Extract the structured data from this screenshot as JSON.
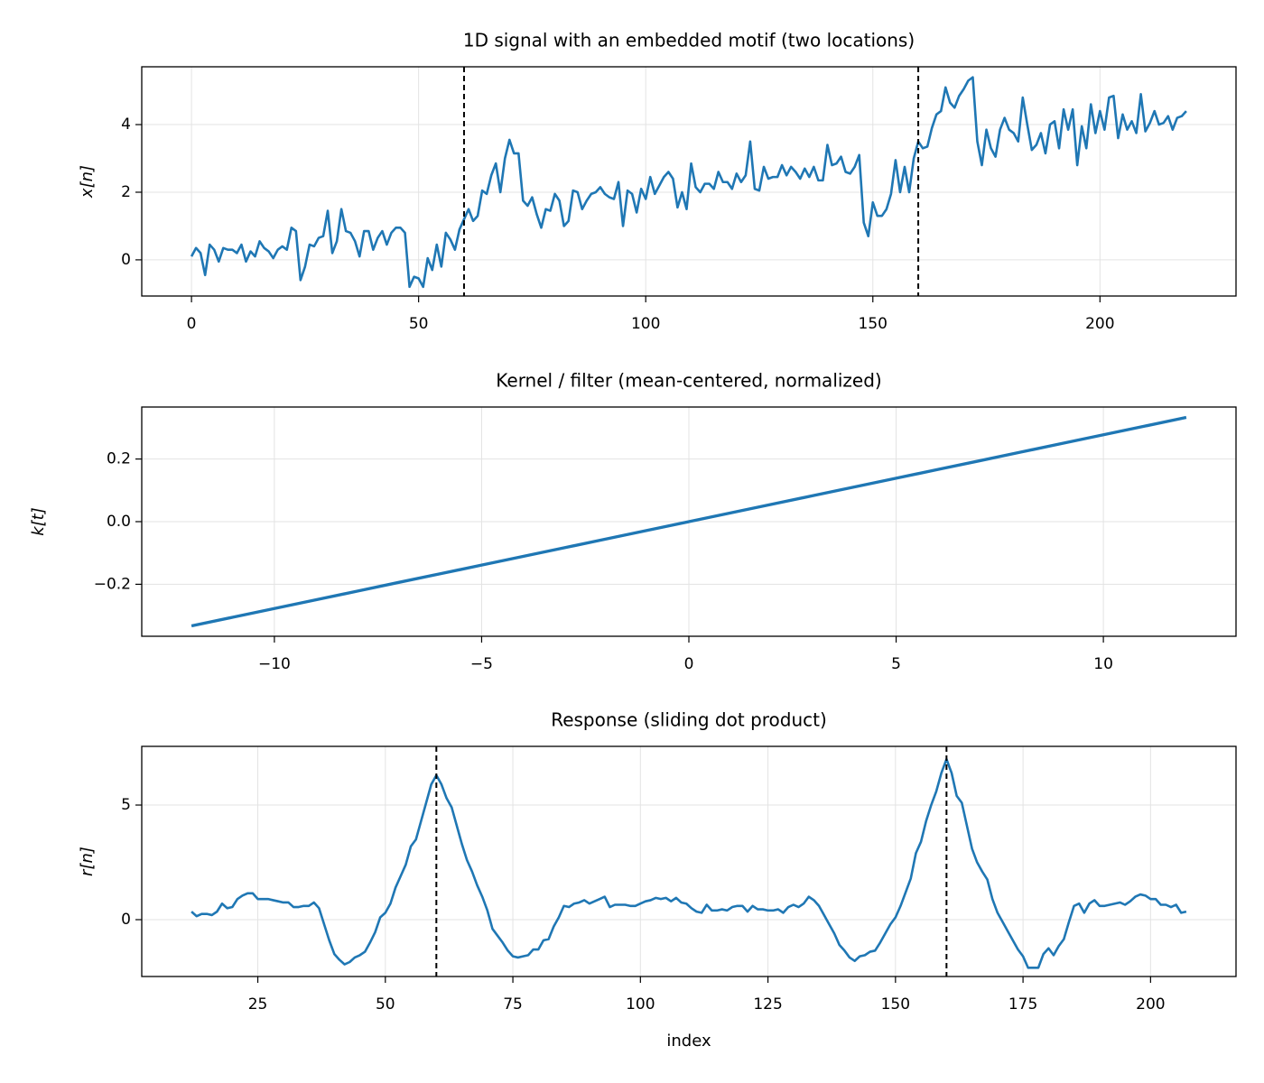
{
  "chart_data": [
    {
      "type": "line",
      "title": "1D signal with an embedded motif (two locations)",
      "y_label": "x[n]",
      "color": "#1f77b4",
      "grid": true,
      "xlim": [
        -10.95,
        229.95
      ],
      "ylim": [
        -1.07,
        5.71
      ],
      "xticks": [
        0,
        50,
        100,
        150,
        200
      ],
      "yticks": [
        0,
        2,
        4
      ],
      "vlines": [
        60,
        160
      ],
      "x": [
        0,
        1,
        2,
        3,
        4,
        5,
        6,
        7,
        8,
        9,
        10,
        11,
        12,
        13,
        14,
        15,
        16,
        17,
        18,
        19,
        20,
        21,
        22,
        23,
        24,
        25,
        26,
        27,
        28,
        29,
        30,
        31,
        32,
        33,
        34,
        35,
        36,
        37,
        38,
        39,
        40,
        41,
        42,
        43,
        44,
        45,
        46,
        47,
        48,
        49,
        50,
        51,
        52,
        53,
        54,
        55,
        56,
        57,
        58,
        59,
        60,
        61,
        62,
        63,
        64,
        65,
        66,
        67,
        68,
        69,
        70,
        71,
        72,
        73,
        74,
        75,
        76,
        77,
        78,
        79,
        80,
        81,
        82,
        83,
        84,
        85,
        86,
        87,
        88,
        89,
        90,
        91,
        92,
        93,
        94,
        95,
        96,
        97,
        98,
        99,
        100,
        101,
        102,
        103,
        104,
        105,
        106,
        107,
        108,
        109,
        110,
        111,
        112,
        113,
        114,
        115,
        116,
        117,
        118,
        119,
        120,
        121,
        122,
        123,
        124,
        125,
        126,
        127,
        128,
        129,
        130,
        131,
        132,
        133,
        134,
        135,
        136,
        137,
        138,
        139,
        140,
        141,
        142,
        143,
        144,
        145,
        146,
        147,
        148,
        149,
        150,
        151,
        152,
        153,
        154,
        155,
        156,
        157,
        158,
        159,
        160,
        161,
        162,
        163,
        164,
        165,
        166,
        167,
        168,
        169,
        170,
        171,
        172,
        173,
        174,
        175,
        176,
        177,
        178,
        179,
        180,
        181,
        182,
        183,
        184,
        185,
        186,
        187,
        188,
        189,
        190,
        191,
        192,
        193,
        194,
        195,
        196,
        197,
        198,
        199,
        200,
        201,
        202,
        203,
        204,
        205,
        206,
        207,
        208,
        209,
        210,
        211,
        212,
        213,
        214,
        215,
        216,
        217,
        218,
        219
      ],
      "values": [
        0.1,
        0.35,
        0.2,
        -0.45,
        0.45,
        0.3,
        -0.05,
        0.35,
        0.3,
        0.3,
        0.2,
        0.45,
        -0.05,
        0.25,
        0.1,
        0.55,
        0.35,
        0.25,
        0.05,
        0.3,
        0.4,
        0.3,
        0.95,
        0.85,
        -0.6,
        -0.2,
        0.45,
        0.4,
        0.65,
        0.7,
        1.45,
        0.2,
        0.55,
        1.5,
        0.85,
        0.8,
        0.55,
        0.1,
        0.85,
        0.85,
        0.3,
        0.65,
        0.85,
        0.45,
        0.8,
        0.95,
        0.95,
        0.8,
        -0.8,
        -0.5,
        -0.55,
        -0.8,
        0.05,
        -0.3,
        0.45,
        -0.2,
        0.8,
        0.6,
        0.3,
        0.9,
        1.2,
        1.5,
        1.15,
        1.3,
        2.05,
        1.95,
        2.5,
        2.85,
        2.0,
        3.0,
        3.55,
        3.15,
        3.15,
        1.75,
        1.6,
        1.85,
        1.35,
        0.95,
        1.5,
        1.45,
        1.95,
        1.75,
        1.0,
        1.15,
        2.05,
        2.0,
        1.5,
        1.75,
        1.95,
        2.0,
        2.15,
        1.95,
        1.85,
        1.8,
        2.3,
        1.0,
        2.05,
        1.95,
        1.4,
        2.1,
        1.8,
        2.45,
        1.95,
        2.2,
        2.45,
        2.6,
        2.4,
        1.55,
        2.0,
        1.5,
        2.85,
        2.15,
        2.0,
        2.25,
        2.25,
        2.1,
        2.6,
        2.3,
        2.3,
        2.1,
        2.55,
        2.3,
        2.5,
        3.5,
        2.1,
        2.05,
        2.75,
        2.4,
        2.45,
        2.45,
        2.8,
        2.5,
        2.75,
        2.6,
        2.4,
        2.7,
        2.45,
        2.75,
        2.35,
        2.35,
        3.4,
        2.8,
        2.85,
        3.05,
        2.6,
        2.55,
        2.75,
        3.1,
        1.1,
        0.7,
        1.7,
        1.3,
        1.3,
        1.5,
        1.95,
        2.95,
        2.0,
        2.75,
        2.0,
        3.0,
        3.5,
        3.3,
        3.35,
        3.9,
        4.3,
        4.4,
        5.1,
        4.65,
        4.5,
        4.85,
        5.05,
        5.3,
        5.4,
        3.5,
        2.8,
        3.85,
        3.3,
        3.05,
        3.85,
        4.2,
        3.85,
        3.75,
        3.5,
        4.8,
        4.0,
        3.25,
        3.4,
        3.75,
        3.15,
        4.0,
        4.1,
        3.3,
        4.45,
        3.85,
        4.45,
        2.8,
        3.95,
        3.3,
        4.6,
        3.75,
        4.4,
        3.85,
        4.8,
        4.85,
        3.6,
        4.3,
        3.85,
        4.1,
        3.75,
        4.9,
        3.8,
        4.05,
        4.4,
        4.0,
        4.05,
        4.25,
        3.85,
        4.2,
        4.25,
        4.4
      ]
    },
    {
      "type": "line",
      "title": "Kernel / filter (mean-centered, normalized)",
      "y_label": "k[t]",
      "color": "#1f77b4",
      "grid": true,
      "xlim": [
        -13.2,
        13.2
      ],
      "ylim": [
        -0.366,
        0.366
      ],
      "xticks": [
        {
          "value": -10,
          "label": "−10"
        },
        {
          "value": -5,
          "label": "−5"
        },
        0,
        5,
        10
      ],
      "yticks": [
        {
          "value": -0.2,
          "label": "−0.2"
        },
        {
          "value": 0,
          "label": "0.0"
        },
        0.2
      ],
      "x": [
        -12,
        -11,
        -10,
        -9,
        -8,
        -7,
        -6,
        -5,
        -4,
        -3,
        -2,
        -1,
        0,
        1,
        2,
        3,
        4,
        5,
        6,
        7,
        8,
        9,
        10,
        11,
        12
      ],
      "values": [
        -0.3328,
        -0.3051,
        -0.2774,
        -0.2496,
        -0.2219,
        -0.1941,
        -0.1664,
        -0.1387,
        -0.1109,
        -0.0832,
        -0.0555,
        -0.0277,
        0,
        0.0277,
        0.0555,
        0.0832,
        0.1109,
        0.1387,
        0.1664,
        0.1941,
        0.2219,
        0.2496,
        0.2774,
        0.3051,
        0.3328
      ]
    },
    {
      "type": "line",
      "title": "Response (sliding dot product)",
      "y_label": "r[n]",
      "x_label": "index",
      "color": "#1f77b4",
      "grid": true,
      "xlim": [
        2.25,
        216.75
      ],
      "ylim": [
        -2.48,
        7.56
      ],
      "xticks": [
        25,
        50,
        75,
        100,
        125,
        150,
        175,
        200
      ],
      "yticks": [
        0,
        5
      ],
      "vlines": [
        60,
        160
      ],
      "x": [
        12,
        13,
        14,
        15,
        16,
        17,
        18,
        19,
        20,
        21,
        22,
        23,
        24,
        25,
        26,
        27,
        28,
        29,
        30,
        31,
        32,
        33,
        34,
        35,
        36,
        37,
        38,
        39,
        40,
        41,
        42,
        43,
        44,
        45,
        46,
        47,
        48,
        49,
        50,
        51,
        52,
        53,
        54,
        55,
        56,
        57,
        58,
        59,
        60,
        61,
        62,
        63,
        64,
        65,
        66,
        67,
        68,
        69,
        70,
        71,
        72,
        73,
        74,
        75,
        76,
        77,
        78,
        79,
        80,
        81,
        82,
        83,
        84,
        85,
        86,
        87,
        88,
        89,
        90,
        91,
        92,
        93,
        94,
        95,
        96,
        97,
        98,
        99,
        100,
        101,
        102,
        103,
        104,
        105,
        106,
        107,
        108,
        109,
        110,
        111,
        112,
        113,
        114,
        115,
        116,
        117,
        118,
        119,
        120,
        121,
        122,
        123,
        124,
        125,
        126,
        127,
        128,
        129,
        130,
        131,
        132,
        133,
        134,
        135,
        136,
        137,
        138,
        139,
        140,
        141,
        142,
        143,
        144,
        145,
        146,
        147,
        148,
        149,
        150,
        151,
        152,
        153,
        154,
        155,
        156,
        157,
        158,
        159,
        160,
        161,
        162,
        163,
        164,
        165,
        166,
        167,
        168,
        169,
        170,
        171,
        172,
        173,
        174,
        175,
        176,
        177,
        178,
        179,
        180,
        181,
        182,
        183,
        184,
        185,
        186,
        187,
        188,
        189,
        190,
        191,
        192,
        193,
        194,
        195,
        196,
        197,
        198,
        199,
        200,
        201,
        202,
        203,
        204,
        205,
        206,
        207
      ],
      "values": [
        0.35,
        0.15,
        0.25,
        0.25,
        0.2,
        0.35,
        0.7,
        0.5,
        0.55,
        0.9,
        1.05,
        1.15,
        1.15,
        0.9,
        0.9,
        0.9,
        0.85,
        0.8,
        0.75,
        0.75,
        0.55,
        0.55,
        0.6,
        0.6,
        0.75,
        0.5,
        -0.2,
        -0.9,
        -1.5,
        -1.75,
        -1.95,
        -1.85,
        -1.65,
        -1.55,
        -1.4,
        -1.0,
        -0.55,
        0.1,
        0.3,
        0.7,
        1.4,
        1.9,
        2.4,
        3.2,
        3.5,
        4.3,
        5.1,
        5.9,
        6.3,
        5.9,
        5.3,
        4.9,
        4.1,
        3.3,
        2.6,
        2.1,
        1.5,
        1.0,
        0.4,
        -0.4,
        -0.7,
        -1.0,
        -1.35,
        -1.6,
        -1.65,
        -1.6,
        -1.55,
        -1.3,
        -1.3,
        -0.9,
        -0.85,
        -0.3,
        0.1,
        0.6,
        0.55,
        0.7,
        0.75,
        0.85,
        0.7,
        0.8,
        0.9,
        1.0,
        0.55,
        0.65,
        0.65,
        0.65,
        0.6,
        0.6,
        0.7,
        0.8,
        0.85,
        0.95,
        0.9,
        0.95,
        0.8,
        0.95,
        0.75,
        0.7,
        0.5,
        0.35,
        0.3,
        0.65,
        0.4,
        0.4,
        0.45,
        0.4,
        0.55,
        0.6,
        0.6,
        0.35,
        0.6,
        0.45,
        0.45,
        0.4,
        0.4,
        0.45,
        0.3,
        0.55,
        0.65,
        0.55,
        0.7,
        1.0,
        0.85,
        0.6,
        0.2,
        -0.2,
        -0.6,
        -1.1,
        -1.35,
        -1.65,
        -1.8,
        -1.6,
        -1.55,
        -1.4,
        -1.35,
        -1.0,
        -0.6,
        -0.2,
        0.1,
        0.6,
        1.2,
        1.8,
        2.9,
        3.4,
        4.3,
        5.0,
        5.6,
        6.4,
        7.0,
        6.4,
        5.4,
        5.1,
        4.1,
        3.1,
        2.5,
        2.1,
        1.75,
        0.9,
        0.3,
        -0.1,
        -0.5,
        -0.9,
        -1.3,
        -1.6,
        -2.1,
        -2.1,
        -2.1,
        -1.5,
        -1.25,
        -1.55,
        -1.15,
        -0.85,
        -0.1,
        0.6,
        0.7,
        0.3,
        0.7,
        0.85,
        0.6,
        0.6,
        0.65,
        0.7,
        0.75,
        0.65,
        0.8,
        1.0,
        1.1,
        1.05,
        0.9,
        0.9,
        0.65,
        0.65,
        0.55,
        0.65,
        0.3,
        0.35
      ]
    }
  ]
}
